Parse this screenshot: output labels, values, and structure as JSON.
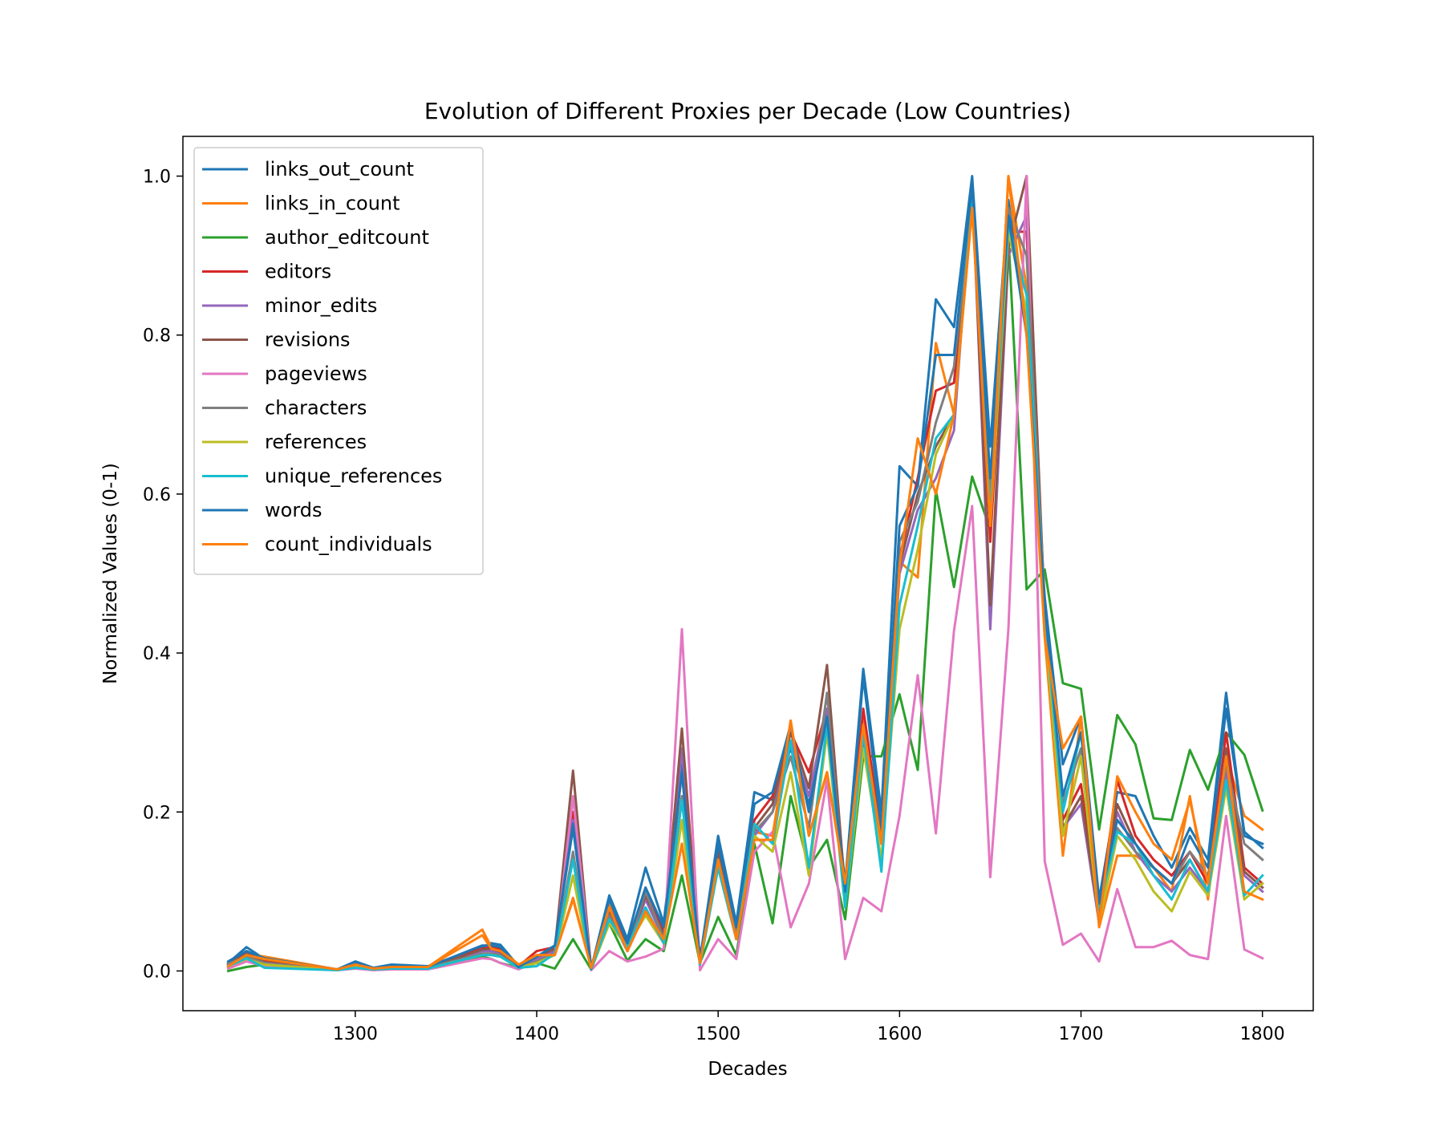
{
  "chart_data": {
    "type": "line",
    "title": "Evolution of Different Proxies per Decade (Low Countries)",
    "xlabel": "Decades",
    "ylabel": "Normalized Values (0-1)",
    "xlim": [
      1205,
      1828
    ],
    "ylim": [
      -0.05,
      1.05
    ],
    "xticks": [
      1300,
      1400,
      1500,
      1600,
      1700,
      1800
    ],
    "xtick_labels": [
      "1300",
      "1400",
      "1500",
      "1600",
      "1700",
      "1800"
    ],
    "yticks": [
      0.0,
      0.2,
      0.4,
      0.6,
      0.8,
      1.0
    ],
    "ytick_labels": [
      "0.0",
      "0.2",
      "0.4",
      "0.6",
      "0.8",
      "1.0"
    ],
    "grid": false,
    "legend_position": "upper-left",
    "x": [
      1230,
      1240,
      1250,
      1290,
      1300,
      1310,
      1320,
      1340,
      1370,
      1375,
      1380,
      1390,
      1400,
      1410,
      1420,
      1430,
      1440,
      1450,
      1460,
      1470,
      1480,
      1490,
      1500,
      1510,
      1520,
      1530,
      1540,
      1550,
      1560,
      1570,
      1580,
      1590,
      1600,
      1610,
      1620,
      1630,
      1640,
      1650,
      1660,
      1670,
      1680,
      1690,
      1700,
      1710,
      1720,
      1730,
      1740,
      1750,
      1760,
      1770,
      1780,
      1790,
      1800
    ],
    "series": [
      {
        "name": "links_out_count",
        "color": "#1f77b4",
        "values": [
          0.01,
          0.03,
          0.015,
          0.002,
          0.012,
          0.004,
          0.008,
          0.006,
          0.03,
          0.035,
          0.033,
          0.006,
          0.015,
          0.03,
          0.18,
          0.003,
          0.095,
          0.04,
          0.13,
          0.06,
          0.26,
          0.015,
          0.17,
          0.06,
          0.225,
          0.215,
          0.28,
          0.21,
          0.33,
          0.11,
          0.38,
          0.2,
          0.635,
          0.61,
          0.845,
          0.81,
          1.0,
          0.66,
          0.97,
          0.81,
          0.47,
          0.26,
          0.32,
          0.09,
          0.225,
          0.22,
          0.17,
          0.13,
          0.18,
          0.14,
          0.35,
          0.17,
          0.16
        ]
      },
      {
        "name": "links_in_count",
        "color": "#ff7f0e",
        "values": [
          0.005,
          0.022,
          0.018,
          0.002,
          0.008,
          0.003,
          0.005,
          0.005,
          0.052,
          0.03,
          0.028,
          0.008,
          0.018,
          0.02,
          0.092,
          0.004,
          0.085,
          0.025,
          0.075,
          0.04,
          0.16,
          0.01,
          0.14,
          0.04,
          0.175,
          0.17,
          0.315,
          0.17,
          0.25,
          0.11,
          0.32,
          0.16,
          0.515,
          0.495,
          0.79,
          0.7,
          0.96,
          0.57,
          1.0,
          0.86,
          0.42,
          0.145,
          0.32,
          0.055,
          0.145,
          0.145,
          0.13,
          0.1,
          0.22,
          0.09,
          0.27,
          0.195,
          0.178
        ]
      },
      {
        "name": "author_editcount",
        "color": "#2ca02c",
        "values": [
          0.0,
          0.005,
          0.008,
          0.001,
          0.004,
          0.002,
          0.003,
          0.004,
          0.018,
          0.015,
          0.01,
          0.004,
          0.01,
          0.003,
          0.04,
          0.002,
          0.06,
          0.013,
          0.04,
          0.025,
          0.12,
          0.01,
          0.068,
          0.02,
          0.16,
          0.06,
          0.22,
          0.13,
          0.165,
          0.065,
          0.27,
          0.27,
          0.348,
          0.253,
          0.605,
          0.483,
          0.622,
          0.555,
          0.925,
          0.48,
          0.505,
          0.362,
          0.355,
          0.178,
          0.322,
          0.285,
          0.192,
          0.19,
          0.278,
          0.228,
          0.3,
          0.272,
          0.202
        ]
      },
      {
        "name": "editors",
        "color": "#d62728",
        "values": [
          0.008,
          0.025,
          0.012,
          0.001,
          0.007,
          0.003,
          0.005,
          0.005,
          0.028,
          0.03,
          0.028,
          0.006,
          0.025,
          0.03,
          0.2,
          0.003,
          0.08,
          0.03,
          0.1,
          0.05,
          0.25,
          0.013,
          0.15,
          0.05,
          0.19,
          0.22,
          0.3,
          0.25,
          0.33,
          0.1,
          0.33,
          0.17,
          0.52,
          0.62,
          0.73,
          0.74,
          0.98,
          0.54,
          0.93,
          0.93,
          0.46,
          0.19,
          0.235,
          0.07,
          0.24,
          0.17,
          0.14,
          0.12,
          0.15,
          0.11,
          0.3,
          0.13,
          0.11
        ]
      },
      {
        "name": "minor_edits",
        "color": "#9467bd",
        "values": [
          0.008,
          0.02,
          0.01,
          0.001,
          0.005,
          0.002,
          0.004,
          0.004,
          0.025,
          0.025,
          0.022,
          0.005,
          0.015,
          0.025,
          0.19,
          0.003,
          0.07,
          0.025,
          0.09,
          0.04,
          0.28,
          0.01,
          0.14,
          0.045,
          0.17,
          0.2,
          0.29,
          0.22,
          0.33,
          0.09,
          0.3,
          0.16,
          0.5,
          0.58,
          0.62,
          0.68,
          0.99,
          0.43,
          0.9,
          0.95,
          0.44,
          0.18,
          0.21,
          0.06,
          0.2,
          0.15,
          0.12,
          0.1,
          0.13,
          0.1,
          0.25,
          0.12,
          0.1
        ]
      },
      {
        "name": "revisions",
        "color": "#8c564b",
        "values": [
          0.009,
          0.022,
          0.011,
          0.001,
          0.006,
          0.002,
          0.004,
          0.004,
          0.027,
          0.028,
          0.024,
          0.005,
          0.018,
          0.028,
          0.252,
          0.003,
          0.075,
          0.028,
          0.095,
          0.045,
          0.305,
          0.012,
          0.15,
          0.05,
          0.18,
          0.21,
          0.3,
          0.23,
          0.385,
          0.1,
          0.31,
          0.165,
          0.51,
          0.6,
          0.66,
          0.7,
          0.99,
          0.46,
          0.91,
          1.0,
          0.45,
          0.18,
          0.22,
          0.065,
          0.21,
          0.16,
          0.13,
          0.11,
          0.14,
          0.1,
          0.28,
          0.125,
          0.105
        ]
      },
      {
        "name": "pageviews",
        "color": "#e377c2",
        "values": [
          0.003,
          0.012,
          0.006,
          0.001,
          0.003,
          0.001,
          0.002,
          0.002,
          0.016,
          0.015,
          0.01,
          0.002,
          0.012,
          0.02,
          0.22,
          0.001,
          0.025,
          0.012,
          0.018,
          0.028,
          0.43,
          0.001,
          0.04,
          0.015,
          0.15,
          0.175,
          0.055,
          0.11,
          0.24,
          0.015,
          0.092,
          0.075,
          0.195,
          0.372,
          0.173,
          0.428,
          0.585,
          0.118,
          0.43,
          1.0,
          0.138,
          0.033,
          0.047,
          0.012,
          0.103,
          0.03,
          0.03,
          0.038,
          0.02,
          0.015,
          0.195,
          0.027,
          0.016
        ]
      },
      {
        "name": "characters",
        "color": "#7f7f7f",
        "values": [
          0.009,
          0.018,
          0.01,
          0.001,
          0.006,
          0.002,
          0.004,
          0.004,
          0.022,
          0.022,
          0.02,
          0.004,
          0.012,
          0.022,
          0.15,
          0.002,
          0.07,
          0.025,
          0.1,
          0.04,
          0.22,
          0.01,
          0.14,
          0.045,
          0.175,
          0.2,
          0.27,
          0.18,
          0.35,
          0.09,
          0.29,
          0.16,
          0.54,
          0.59,
          0.69,
          0.76,
          0.98,
          0.6,
          0.96,
          0.9,
          0.46,
          0.21,
          0.28,
          0.07,
          0.18,
          0.15,
          0.13,
          0.11,
          0.15,
          0.12,
          0.26,
          0.16,
          0.14
        ]
      },
      {
        "name": "references",
        "color": "#bcbd22",
        "values": [
          0.006,
          0.015,
          0.008,
          0.001,
          0.005,
          0.002,
          0.003,
          0.003,
          0.02,
          0.02,
          0.018,
          0.004,
          0.01,
          0.02,
          0.12,
          0.002,
          0.06,
          0.03,
          0.07,
          0.035,
          0.19,
          0.008,
          0.13,
          0.04,
          0.17,
          0.15,
          0.25,
          0.12,
          0.3,
          0.08,
          0.28,
          0.14,
          0.43,
          0.53,
          0.65,
          0.7,
          0.97,
          0.56,
          0.93,
          0.83,
          0.44,
          0.17,
          0.27,
          0.06,
          0.17,
          0.14,
          0.1,
          0.075,
          0.125,
          0.095,
          0.23,
          0.09,
          0.11
        ]
      },
      {
        "name": "unique_references",
        "color": "#17becf",
        "values": [
          0.006,
          0.016,
          0.004,
          0.001,
          0.004,
          0.002,
          0.003,
          0.003,
          0.02,
          0.02,
          0.018,
          0.004,
          0.006,
          0.022,
          0.14,
          0.002,
          0.065,
          0.03,
          0.08,
          0.035,
          0.215,
          0.008,
          0.13,
          0.04,
          0.185,
          0.16,
          0.29,
          0.13,
          0.31,
          0.08,
          0.3,
          0.125,
          0.46,
          0.56,
          0.67,
          0.7,
          0.97,
          0.58,
          0.94,
          0.85,
          0.45,
          0.2,
          0.3,
          0.08,
          0.175,
          0.16,
          0.12,
          0.09,
          0.14,
          0.1,
          0.24,
          0.095,
          0.12
        ]
      },
      {
        "name": "words",
        "color": "#1f77b4",
        "values": [
          0.012,
          0.025,
          0.016,
          0.002,
          0.01,
          0.003,
          0.007,
          0.005,
          0.032,
          0.032,
          0.03,
          0.005,
          0.018,
          0.032,
          0.185,
          0.003,
          0.09,
          0.035,
          0.105,
          0.055,
          0.25,
          0.014,
          0.16,
          0.055,
          0.21,
          0.225,
          0.31,
          0.2,
          0.32,
          0.1,
          0.37,
          0.18,
          0.56,
          0.61,
          0.775,
          0.775,
          0.99,
          0.62,
          0.95,
          0.8,
          0.46,
          0.22,
          0.3,
          0.085,
          0.19,
          0.16,
          0.13,
          0.11,
          0.17,
          0.13,
          0.33,
          0.175,
          0.155
        ]
      },
      {
        "name": "count_individuals",
        "color": "#ff7f0e",
        "values": [
          0.006,
          0.02,
          0.015,
          0.002,
          0.008,
          0.003,
          0.005,
          0.005,
          0.045,
          0.028,
          0.025,
          0.008,
          0.02,
          0.02,
          0.09,
          0.004,
          0.08,
          0.025,
          0.075,
          0.04,
          0.16,
          0.01,
          0.14,
          0.04,
          0.165,
          0.165,
          0.315,
          0.17,
          0.25,
          0.11,
          0.31,
          0.16,
          0.51,
          0.67,
          0.6,
          0.7,
          0.96,
          0.56,
          1.0,
          0.8,
          0.42,
          0.28,
          0.32,
          0.058,
          0.245,
          0.2,
          0.16,
          0.14,
          0.215,
          0.11,
          0.27,
          0.1,
          0.09
        ]
      }
    ]
  }
}
